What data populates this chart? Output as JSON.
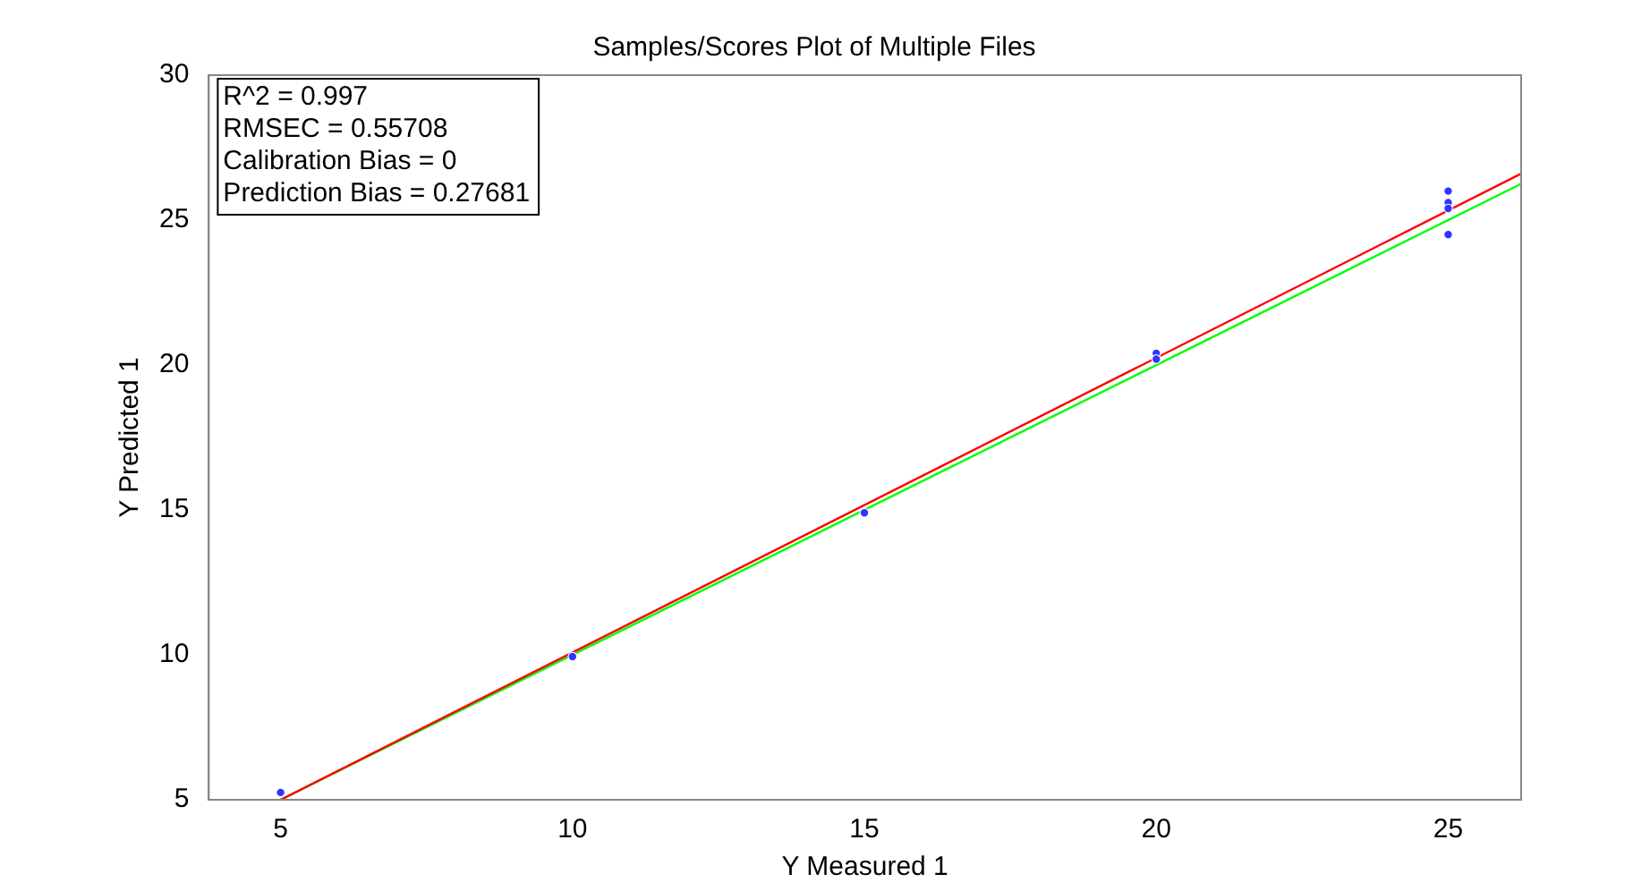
{
  "chart_data": {
    "type": "scatter",
    "title": "Samples/Scores Plot of Multiple Files",
    "xlabel": "Y Measured 1",
    "ylabel": "Y Predicted 1",
    "annotations": [
      "R^2 = 0.997",
      "RMSEC = 0.55708",
      "Calibration Bias = 0",
      "Prediction Bias = 0.27681"
    ],
    "xlim": [
      3.77,
      26.25
    ],
    "xticks": [
      5,
      10,
      15,
      20,
      25
    ],
    "ylim": [
      5,
      30
    ],
    "yticks": [
      5,
      10,
      15,
      20,
      25,
      30
    ],
    "grid": false,
    "legend": false,
    "series": [
      {
        "marker": "circle",
        "color": "#3333ff",
        "x": [
          5,
          10,
          15,
          20,
          20,
          25,
          25,
          25,
          25
        ],
        "values": [
          5.25,
          9.94,
          14.9,
          20.4,
          20.2,
          26.0,
          25.6,
          25.4,
          24.5
        ]
      },
      {
        "type": "line",
        "color": "#ff0000",
        "x": [
          5,
          26.25
        ],
        "values": [
          5,
          26.6
        ]
      },
      {
        "type": "line",
        "color": "#00ff00",
        "x": [
          5,
          26.25
        ],
        "values": [
          5,
          26.25
        ]
      }
    ]
  }
}
